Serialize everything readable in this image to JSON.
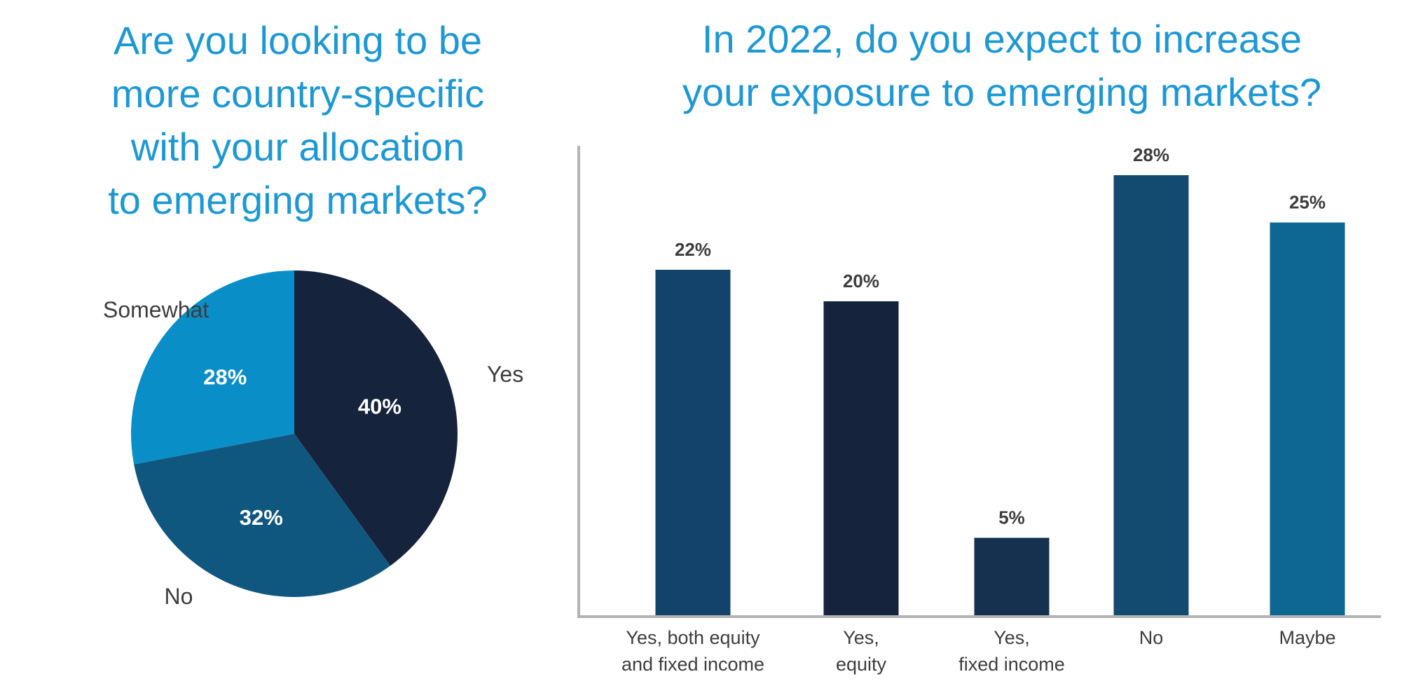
{
  "chart_data": [
    {
      "type": "pie",
      "title_lines": [
        "Are you looking to be",
        "more country-specific",
        "with your allocation",
        "to emerging markets?"
      ],
      "slices": [
        {
          "label": "Yes",
          "value": 40,
          "value_label": "40%",
          "color": "#16233d"
        },
        {
          "label": "No",
          "value": 32,
          "value_label": "32%",
          "color": "#10577f"
        },
        {
          "label": "Somewhat",
          "value": 28,
          "value_label": "28%",
          "color": "#0a8ec8"
        }
      ]
    },
    {
      "type": "bar",
      "title_lines": [
        "In 2022, do you expect to increase",
        "your exposure to emerging markets?"
      ],
      "categories": [
        [
          "Yes, both equity",
          "and fixed income"
        ],
        [
          "Yes,",
          "equity"
        ],
        [
          "Yes,",
          "fixed income"
        ],
        [
          "No"
        ],
        [
          "Maybe"
        ]
      ],
      "values": [
        22,
        20,
        5,
        28,
        25
      ],
      "value_labels": [
        "22%",
        "20%",
        "5%",
        "28%",
        "25%"
      ],
      "colors": [
        "#13426a",
        "#16233d",
        "#16304f",
        "#134b70",
        "#0e6692"
      ],
      "xlabel": "",
      "ylabel": "",
      "ylim": [
        0,
        29.5
      ],
      "grid": false
    }
  ]
}
